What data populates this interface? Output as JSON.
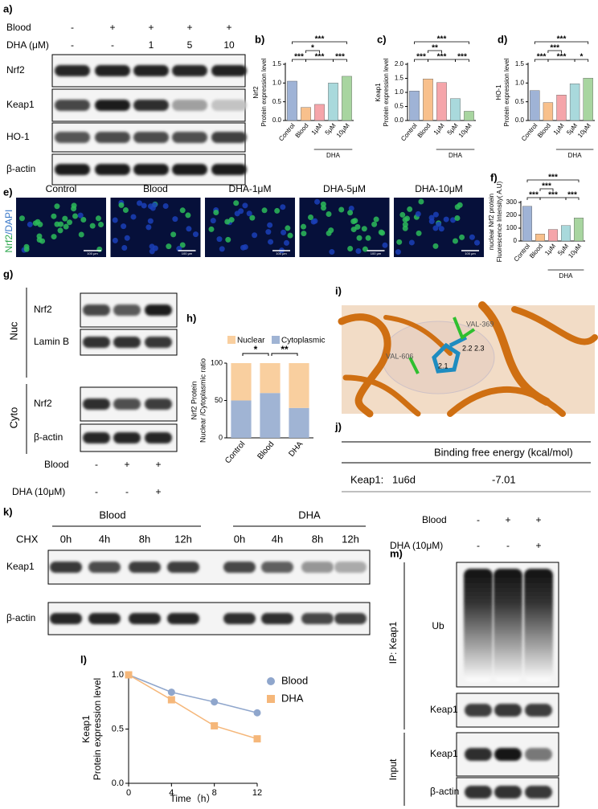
{
  "blot_a": {
    "label": "a)",
    "conditions": [
      {
        "name": "Blood",
        "values": [
          "-",
          "+",
          "+",
          "+",
          "+"
        ]
      },
      {
        "name": "DHA (μM)",
        "values": [
          "-",
          "-",
          "1",
          "5",
          "10"
        ]
      }
    ],
    "bands": [
      "Nrf2",
      "Keap1",
      "HO-1",
      "β-actin"
    ]
  },
  "chart_data": [
    {
      "type": "bar",
      "label": "b)",
      "ylabel": [
        "Nrf2",
        "Protein expression level"
      ],
      "categories": [
        "Control",
        "Blood",
        "1μM",
        "5μM",
        "10μM"
      ],
      "group_label": "DHA",
      "values": [
        1.05,
        0.35,
        0.43,
        1.0,
        1.18
      ],
      "colors": [
        "#9fb3d6",
        "#f8c08c",
        "#f5a5aa",
        "#a9d9dc",
        "#a8d5a0"
      ],
      "ylim": [
        0,
        1.5
      ],
      "yticks": [
        {
          "value": 0,
          "label": "0.0"
        },
        0.5,
        {
          "value": 1,
          "label": "1.0"
        },
        1.5
      ],
      "significance": [
        "***",
        "*",
        "***",
        "***",
        "***"
      ]
    },
    {
      "type": "bar",
      "label": "c)",
      "ylabel": [
        "Keap1",
        "Protein expression level"
      ],
      "categories": [
        "Control",
        "Blood",
        "1μM",
        "5μM",
        "10μM"
      ],
      "group_label": "DHA",
      "values": [
        1.05,
        1.48,
        1.35,
        0.78,
        0.33
      ],
      "colors": [
        "#9fb3d6",
        "#f8c08c",
        "#f5a5aa",
        "#a9d9dc",
        "#a8d5a0"
      ],
      "ylim": [
        0,
        2
      ],
      "yticks": [
        {
          "value": 0,
          "label": "0.0"
        },
        0.5,
        {
          "value": 1,
          "label": "1.0"
        },
        1.5,
        {
          "value": 2,
          "label": "2.0"
        }
      ],
      "significance": [
        "***",
        "**",
        "***",
        "***",
        "***"
      ]
    },
    {
      "type": "bar",
      "label": "d)",
      "ylabel": [
        "HO-1",
        "Protein expression level"
      ],
      "categories": [
        "Control",
        "Blood",
        "1μM",
        "5μM",
        "10μM"
      ],
      "group_label": "DHA",
      "values": [
        0.8,
        0.48,
        0.68,
        0.98,
        1.13
      ],
      "colors": [
        "#9fb3d6",
        "#f8c08c",
        "#f5a5aa",
        "#a9d9dc",
        "#a8d5a0"
      ],
      "ylim": [
        0,
        1.5
      ],
      "yticks": [
        {
          "value": 0,
          "label": "0.0"
        },
        0.5,
        {
          "value": 1,
          "label": "1.0"
        },
        1.5
      ],
      "significance": [
        "***",
        "***",
        "***",
        "***",
        "*"
      ]
    },
    {
      "type": "bar",
      "label": "f)",
      "ylabel": [
        "nuclear Nrf2 protein",
        "Fluorescence Intensity( A.U)"
      ],
      "categories": [
        "Control",
        "Blood",
        "1μM",
        "5μM",
        "10μM"
      ],
      "group_label": "DHA",
      "values": [
        270,
        55,
        90,
        120,
        180
      ],
      "colors": [
        "#9fb3d6",
        "#f8c08c",
        "#f5a5aa",
        "#a9d9dc",
        "#a8d5a0"
      ],
      "ylim": [
        0,
        300
      ],
      "yticks": [
        0,
        100,
        200,
        300
      ],
      "significance": [
        "***",
        "***",
        "***",
        "***",
        "***"
      ]
    },
    {
      "type": "stacked",
      "label": "h)",
      "ylabel": [
        "Nrf2 Protein",
        "Nuclear /Cytoplasmic ratio"
      ],
      "categories": [
        "Control",
        "Blood",
        "DHA"
      ],
      "series": [
        {
          "name": "Nuclear",
          "color": "#f9cf9f",
          "values": [
            50,
            40,
            60
          ]
        },
        {
          "name": "Cytoplasmic",
          "color": "#a0b4d4",
          "values": [
            50,
            60,
            40
          ]
        }
      ],
      "ylim": [
        0,
        100
      ],
      "yticks": [
        0,
        50,
        100
      ],
      "significance": [
        "*",
        "**"
      ]
    },
    {
      "type": "line",
      "label": "l)",
      "ylabel": [
        "Keap1",
        "Protein expression level"
      ],
      "xlabel": "Time（h）",
      "x": [
        0,
        4,
        8,
        12
      ],
      "series": [
        {
          "name": "Blood",
          "color": "#8fa6cc",
          "values": [
            1.0,
            0.84,
            0.75,
            0.65
          ]
        },
        {
          "name": "DHA",
          "color": "#f5b77a",
          "values": [
            1.0,
            0.77,
            0.53,
            0.41
          ]
        }
      ],
      "xlim": [
        0,
        12
      ],
      "xticks": [
        0,
        4,
        8,
        12
      ],
      "ylim": [
        0,
        1
      ],
      "yticks": [
        {
          "value": 0,
          "label": "0.0"
        },
        0.5,
        {
          "value": 1,
          "label": "1.0"
        }
      ]
    }
  ],
  "images_e": {
    "label": "e)",
    "stain": [
      "Nrf2",
      "/DAPI"
    ],
    "groups": [
      "Control",
      "Blood",
      "DHA-1μM",
      "DHA-5μM",
      "DHA-10μM"
    ],
    "scale_bar": "100 μm"
  },
  "blot_g": {
    "label": "g)",
    "fractions": [
      {
        "name": "Nuc",
        "bands": [
          "Nrf2",
          "Lamin B"
        ]
      },
      {
        "name": "Cyto",
        "bands": [
          "Nrf2",
          "β-actin"
        ]
      }
    ],
    "conditions": [
      {
        "name": "Blood",
        "values": [
          "-",
          "+",
          "+"
        ]
      },
      {
        "name": "DHA (10μM)",
        "values": [
          "-",
          "-",
          "+"
        ]
      }
    ]
  },
  "docking_i": {
    "label": "i)",
    "residues": [
      "VAL-369",
      "VAL-606"
    ],
    "distances": [
      2.2,
      2.3,
      2.1
    ]
  },
  "table_j": {
    "label": "j)",
    "header": "Binding free energy (kcal/mol)",
    "rows": [
      [
        "Keap1:",
        "1u6d",
        -7.01
      ]
    ]
  },
  "blot_k": {
    "label": "k)",
    "groups": [
      "Blood",
      "DHA"
    ],
    "treatment": "CHX",
    "times": [
      "0h",
      "4h",
      "8h",
      "12h"
    ],
    "bands": [
      "Keap1",
      "β-actin"
    ]
  },
  "blot_m": {
    "label": "m)",
    "conditions": [
      {
        "name": "Blood",
        "values": [
          "-",
          "+",
          "+"
        ]
      },
      {
        "name": "DHA (10μM)",
        "values": [
          "-",
          "-",
          "+"
        ]
      }
    ],
    "ip": "IP: Keap1",
    "ip_bands": [
      "Ub",
      "Keap1"
    ],
    "input": "Input",
    "input_bands": [
      "Keap1",
      "β-actin"
    ]
  }
}
